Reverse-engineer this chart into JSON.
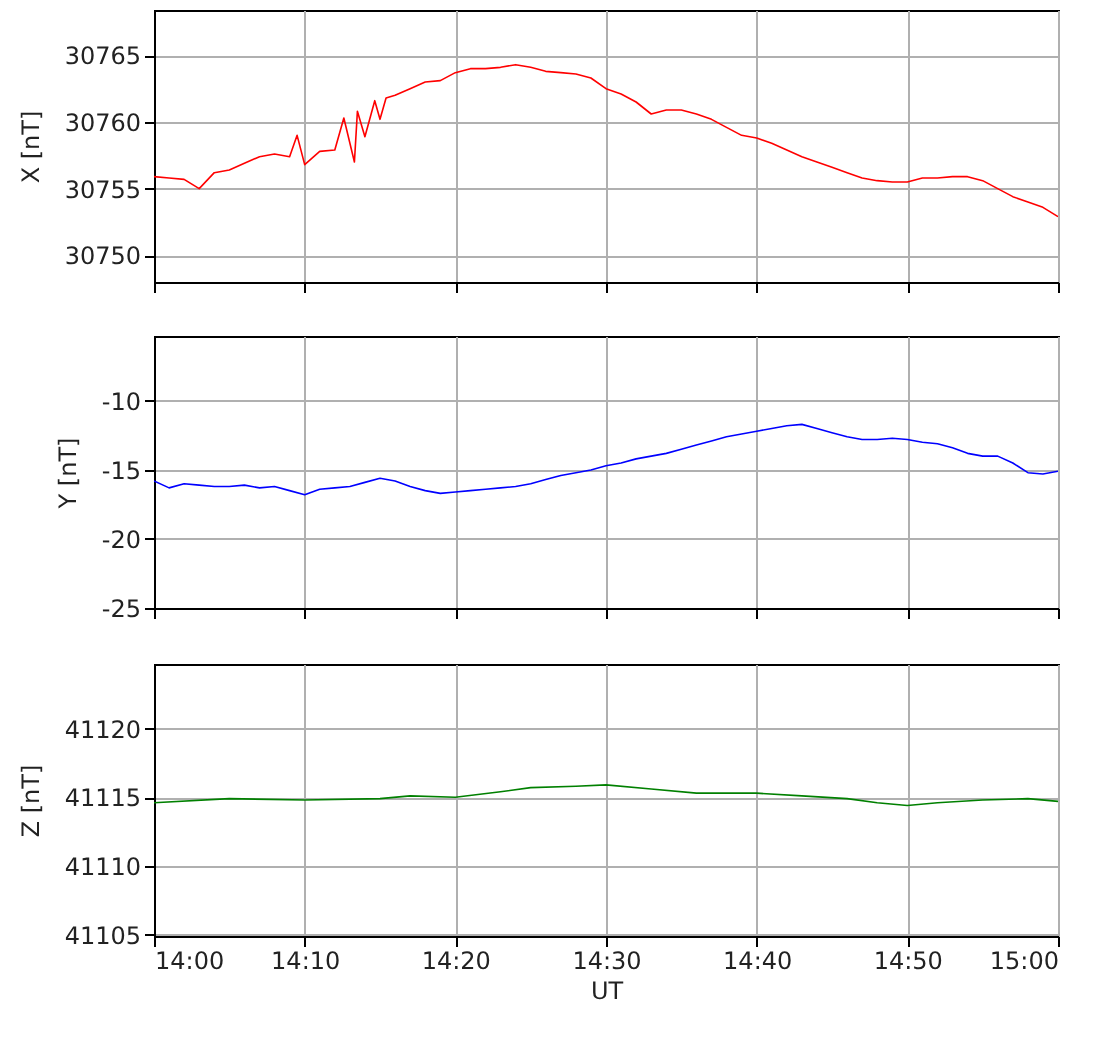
{
  "chart_data": [
    {
      "type": "line",
      "ylabel": "X [nT]",
      "xlim": [
        14,
        15
      ],
      "ylim": [
        30748,
        30768.4
      ],
      "xticks": [
        {
          "value": 14,
          "label": null
        },
        {
          "value": 14.1667,
          "label": null
        },
        {
          "value": 14.3333,
          "label": null
        },
        {
          "value": 14.5,
          "label": null
        },
        {
          "value": 14.6667,
          "label": null
        },
        {
          "value": 14.8333,
          "label": null
        },
        {
          "value": 15,
          "label": null
        }
      ],
      "yticks": [
        30750,
        30755,
        30760,
        30765
      ],
      "grid": true,
      "tick_labels": "y",
      "series": [
        {
          "color": "#ff0000",
          "x": [
            14,
            14.0167,
            14.0333,
            14.05,
            14.0667,
            14.0833,
            14.1,
            14.1167,
            14.1333,
            14.15,
            14.1583,
            14.1667,
            14.1833,
            14.2,
            14.21,
            14.2217,
            14.225,
            14.2333,
            14.2442,
            14.25,
            14.2567,
            14.2667,
            14.2833,
            14.3,
            14.3167,
            14.3333,
            14.35,
            14.3667,
            14.3833,
            14.4,
            14.4167,
            14.4333,
            14.45,
            14.4667,
            14.4833,
            14.5,
            14.5167,
            14.5333,
            14.55,
            14.5667,
            14.5833,
            14.6,
            14.6167,
            14.6333,
            14.65,
            14.6667,
            14.6833,
            14.7,
            14.7167,
            14.7333,
            14.75,
            14.7667,
            14.7833,
            14.8,
            14.8167,
            14.8333,
            14.85,
            14.8667,
            14.8833,
            14.9,
            14.9167,
            14.9333,
            14.95,
            14.9667,
            14.9833,
            15
          ],
          "values": [
            30755.9,
            30755.8,
            30755.7,
            30755.0,
            30756.2,
            30756.4,
            30756.9,
            30757.4,
            30757.6,
            30757.4,
            30759.0,
            30756.8,
            30757.8,
            30757.9,
            30760.3,
            30757.0,
            30760.8,
            30758.9,
            30761.6,
            30760.2,
            30761.8,
            30762.0,
            30762.5,
            30763.0,
            30763.1,
            30763.7,
            30764.0,
            30764.0,
            30764.1,
            30764.3,
            30764.1,
            30763.8,
            30763.7,
            30763.6,
            30763.3,
            30762.5,
            30762.1,
            30761.5,
            30760.6,
            30760.9,
            30760.9,
            30760.6,
            30760.2,
            30759.6,
            30759.0,
            30758.8,
            30758.4,
            30757.9,
            30757.4,
            30757.0,
            30756.6,
            30756.2,
            30755.8,
            30755.6,
            30755.5,
            30755.5,
            30755.8,
            30755.8,
            30755.9,
            30755.9,
            30755.6,
            30755.0,
            30754.4,
            30754.0,
            30753.6,
            30752.9
          ]
        }
      ]
    },
    {
      "type": "line",
      "ylabel": "Y [nT]",
      "xlim": [
        14,
        15
      ],
      "ylim": [
        -25,
        -5.3
      ],
      "xticks": [
        {
          "value": 14,
          "label": null
        },
        {
          "value": 14.1667,
          "label": null
        },
        {
          "value": 14.3333,
          "label": null
        },
        {
          "value": 14.5,
          "label": null
        },
        {
          "value": 14.6667,
          "label": null
        },
        {
          "value": 14.8333,
          "label": null
        },
        {
          "value": 15,
          "label": null
        }
      ],
      "yticks": [
        -25,
        -20,
        -15,
        -10
      ],
      "grid": true,
      "tick_labels": "y",
      "series": [
        {
          "color": "#0000ff",
          "x": [
            14,
            14.0167,
            14.0333,
            14.05,
            14.0667,
            14.0833,
            14.1,
            14.1167,
            14.1333,
            14.15,
            14.1667,
            14.1833,
            14.2,
            14.2167,
            14.2333,
            14.25,
            14.2667,
            14.2833,
            14.3,
            14.3167,
            14.3333,
            14.35,
            14.3667,
            14.3833,
            14.4,
            14.4167,
            14.4333,
            14.45,
            14.4667,
            14.4833,
            14.5,
            14.5167,
            14.5333,
            14.55,
            14.5667,
            14.5833,
            14.6,
            14.6167,
            14.6333,
            14.65,
            14.6667,
            14.6833,
            14.7,
            14.7167,
            14.7333,
            14.75,
            14.7667,
            14.7833,
            14.8,
            14.8167,
            14.8333,
            14.85,
            14.8667,
            14.8833,
            14.9,
            14.9167,
            14.9333,
            14.95,
            14.9667,
            14.9833,
            15
          ],
          "values": [
            -15.8,
            -16.3,
            -16.0,
            -16.1,
            -16.2,
            -16.2,
            -16.1,
            -16.3,
            -16.2,
            -16.5,
            -16.8,
            -16.4,
            -16.3,
            -16.2,
            -15.9,
            -15.6,
            -15.8,
            -16.2,
            -16.5,
            -16.7,
            -16.6,
            -16.5,
            -16.4,
            -16.3,
            -16.2,
            -16.0,
            -15.7,
            -15.4,
            -15.2,
            -15.0,
            -14.7,
            -14.5,
            -14.2,
            -14.0,
            -13.8,
            -13.5,
            -13.2,
            -12.9,
            -12.6,
            -12.4,
            -12.2,
            -12.0,
            -11.8,
            -11.7,
            -12.0,
            -12.3,
            -12.6,
            -12.8,
            -12.8,
            -12.7,
            -12.8,
            -13.0,
            -13.1,
            -13.4,
            -13.8,
            -14.0,
            -14.0,
            -14.5,
            -15.2,
            -15.3,
            -15.1
          ]
        }
      ]
    },
    {
      "type": "line",
      "xlabel": "UT",
      "ylabel": "Z [nT]",
      "xlim": [
        14,
        15
      ],
      "ylim": [
        41104.9,
        41124.7
      ],
      "xticks": [
        {
          "value": 14,
          "label": "14:00"
        },
        {
          "value": 14.1667,
          "label": "14:10"
        },
        {
          "value": 14.3333,
          "label": "14:20"
        },
        {
          "value": 14.5,
          "label": "14:30"
        },
        {
          "value": 14.6667,
          "label": "14:40"
        },
        {
          "value": 14.8333,
          "label": "14:50"
        },
        {
          "value": 15,
          "label": "15:00"
        }
      ],
      "yticks": [
        41105,
        41110,
        41115,
        41120
      ],
      "grid": true,
      "series": [
        {
          "color": "#008000",
          "x": [
            14,
            14.0833,
            14.1667,
            14.25,
            14.2833,
            14.3333,
            14.3833,
            14.4167,
            14.4667,
            14.5,
            14.55,
            14.6,
            14.6667,
            14.7167,
            14.7667,
            14.8,
            14.8333,
            14.8667,
            14.9167,
            14.9667,
            15
          ],
          "values": [
            41114.6,
            41114.9,
            41114.8,
            41114.9,
            41115.1,
            41115.0,
            41115.4,
            41115.7,
            41115.8,
            41115.9,
            41115.6,
            41115.3,
            41115.3,
            41115.1,
            41114.9,
            41114.6,
            41114.4,
            41114.6,
            41114.8,
            41114.9,
            41114.7
          ]
        }
      ]
    }
  ]
}
